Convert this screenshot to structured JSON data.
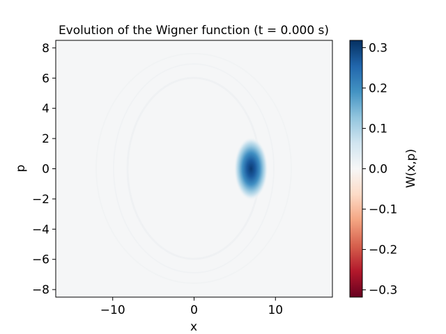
{
  "chart_data": {
    "type": "heatmap",
    "title": "Evolution of the Wigner function (t = 0.000 s)",
    "xlabel": "x",
    "ylabel": "p",
    "xlim": [
      -17,
      17
    ],
    "ylim": [
      -8.5,
      8.5
    ],
    "x_ticks": [
      {
        "value": -10,
        "label": "−10"
      },
      {
        "value": 0,
        "label": "0"
      },
      {
        "value": 10,
        "label": "10"
      }
    ],
    "y_ticks": [
      {
        "value": 8,
        "label": "8"
      },
      {
        "value": 6,
        "label": "6"
      },
      {
        "value": 4,
        "label": "4"
      },
      {
        "value": 2,
        "label": "2"
      },
      {
        "value": 0,
        "label": "0"
      },
      {
        "value": -2,
        "label": "−2"
      },
      {
        "value": -4,
        "label": "−4"
      },
      {
        "value": -6,
        "label": "−6"
      },
      {
        "value": -8,
        "label": "−8"
      }
    ],
    "colormap": "RdBu",
    "colorbar": {
      "label": "W(x,p)",
      "range": [
        -0.318,
        0.318
      ],
      "ticks": [
        {
          "value": 0.3,
          "label": "0.3"
        },
        {
          "value": 0.2,
          "label": "0.2"
        },
        {
          "value": 0.1,
          "label": "0.1"
        },
        {
          "value": 0.0,
          "label": "0.0"
        },
        {
          "value": -0.1,
          "label": "−0.1"
        },
        {
          "value": -0.2,
          "label": "−0.2"
        },
        {
          "value": -0.3,
          "label": "−0.3"
        }
      ]
    },
    "gaussian_peak": {
      "x0": 7.0,
      "p0": 0.0,
      "sigma": 0.7,
      "amplitude": 0.318
    },
    "background_value": 0.003
  }
}
